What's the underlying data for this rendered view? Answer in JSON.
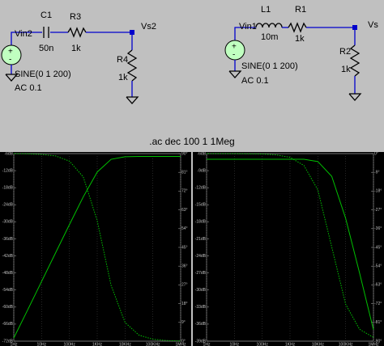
{
  "schematic": {
    "left": {
      "source": "Vin2",
      "cap": "C1",
      "cap_value": "50n",
      "res1": "R3",
      "res1_value": "1k",
      "node": "Vs2",
      "res2": "R4",
      "res2_value": "1k",
      "sine": "SINE(0 1 200)",
      "ac": "AC 0.1"
    },
    "right": {
      "source": "Vin1",
      "ind": "L1",
      "ind_value": "10m",
      "res1": "R1",
      "res1_value": "1k",
      "node": "Vs",
      "res2": "R2",
      "res2_value": "1k",
      "sine": "SINE(0 1 200)",
      "ac": "AC 0.1"
    },
    "directive": ".ac dec 100 1 1Meg"
  },
  "plots": [
    {
      "x": [
        1,
        3.16,
        10,
        31.6,
        100,
        316,
        1000,
        3162,
        10000,
        31623,
        100000,
        316228,
        1000000
      ],
      "magnitude": [
        -70.9,
        -61.0,
        -51.0,
        -41.0,
        -31.0,
        -21.2,
        -12.5,
        -8.0,
        -7.1,
        -7.0,
        -7.0,
        -7.0,
        -7.0
      ],
      "phase": [
        90,
        89.9,
        89.6,
        88.9,
        86.4,
        78.8,
        57.8,
        26.7,
        9.0,
        2.9,
        0.9,
        0.3,
        0.1
      ],
      "color": "#00c000",
      "xlim": [
        1,
        1000000
      ],
      "xticks": [
        {
          "value": 1,
          "label": "1Hz"
        },
        {
          "value": 10,
          "label": "10Hz"
        },
        {
          "value": 100,
          "label": "100Hz"
        },
        {
          "value": 1000,
          "label": "1KHz"
        },
        {
          "value": 10000,
          "label": "10KHz"
        },
        {
          "value": 100000,
          "label": "100KHz"
        },
        {
          "value": 1000000,
          "label": "1MHz"
        }
      ],
      "ylim": [
        -72,
        -6
      ],
      "yticks": [
        {
          "value": -6,
          "label": "-6dB"
        },
        {
          "value": -12,
          "label": "-12dB"
        },
        {
          "value": -18,
          "label": "-18dB"
        },
        {
          "value": -24,
          "label": "-24dB"
        },
        {
          "value": -30,
          "label": "-30dB"
        },
        {
          "value": -36,
          "label": "-36dB"
        },
        {
          "value": -42,
          "label": "-42dB"
        },
        {
          "value": -48,
          "label": "-48dB"
        },
        {
          "value": -54,
          "label": "-54dB"
        },
        {
          "value": -60,
          "label": "-60dB"
        },
        {
          "value": -66,
          "label": "-66dB"
        },
        {
          "value": -72,
          "label": "-72dB"
        }
      ],
      "y2lim": [
        0,
        90
      ],
      "y2ticks": [
        {
          "value": 90,
          "label": "90°"
        },
        {
          "value": 81,
          "label": "81°"
        },
        {
          "value": 72,
          "label": "72°"
        },
        {
          "value": 63,
          "label": "63°"
        },
        {
          "value": 54,
          "label": "54°"
        },
        {
          "value": 45,
          "label": "45°"
        },
        {
          "value": 36,
          "label": "36°"
        },
        {
          "value": 27,
          "label": "27°"
        },
        {
          "value": 18,
          "label": "18°"
        },
        {
          "value": 9,
          "label": "9°"
        },
        {
          "value": 0,
          "label": "0°"
        }
      ]
    },
    {
      "x": [
        1,
        3.16,
        10,
        31.6,
        100,
        316,
        1000,
        3162,
        10000,
        31623,
        100000,
        316228,
        1000000
      ],
      "magnitude": [
        -7.0,
        -7.0,
        -7.0,
        -7.0,
        -7.0,
        -7.0,
        -7.0,
        -7.0,
        -7.4,
        -10.0,
        -17.4,
        -27.0,
        -37.0
      ],
      "phase": [
        0,
        0,
        0,
        -0.1,
        -0.2,
        -0.6,
        -1.8,
        -5.7,
        -17.4,
        -44.8,
        -72.3,
        -84.3,
        -88.2
      ],
      "color": "#00c000",
      "xlim": [
        1,
        1000000
      ],
      "xticks": [
        {
          "value": 1,
          "label": "1Hz"
        },
        {
          "value": 10,
          "label": "10Hz"
        },
        {
          "value": 100,
          "label": "100Hz"
        },
        {
          "value": 1000,
          "label": "1KHz"
        },
        {
          "value": 10000,
          "label": "10KHz"
        },
        {
          "value": 100000,
          "label": "100KHz"
        },
        {
          "value": 1000000,
          "label": "1MHz"
        }
      ],
      "ylim": [
        -39,
        -6
      ],
      "yticks": [
        {
          "value": -6,
          "label": "-6dB"
        },
        {
          "value": -9,
          "label": "-9dB"
        },
        {
          "value": -12,
          "label": "-12dB"
        },
        {
          "value": -15,
          "label": "-15dB"
        },
        {
          "value": -18,
          "label": "-18dB"
        },
        {
          "value": -21,
          "label": "-21dB"
        },
        {
          "value": -24,
          "label": "-24dB"
        },
        {
          "value": -27,
          "label": "-27dB"
        },
        {
          "value": -30,
          "label": "-30dB"
        },
        {
          "value": -33,
          "label": "-33dB"
        },
        {
          "value": -36,
          "label": "-36dB"
        },
        {
          "value": -39,
          "label": "-39dB"
        }
      ],
      "y2lim": [
        -90,
        0
      ],
      "y2ticks": [
        {
          "value": 0,
          "label": "0°"
        },
        {
          "value": -9,
          "label": "-9°"
        },
        {
          "value": -18,
          "label": "-18°"
        },
        {
          "value": -27,
          "label": "-27°"
        },
        {
          "value": -36,
          "label": "-36°"
        },
        {
          "value": -45,
          "label": "-45°"
        },
        {
          "value": -54,
          "label": "-54°"
        },
        {
          "value": -63,
          "label": "-63°"
        },
        {
          "value": -72,
          "label": "-72°"
        },
        {
          "value": -81,
          "label": "-81°"
        },
        {
          "value": -90,
          "label": "-90°"
        }
      ]
    }
  ]
}
